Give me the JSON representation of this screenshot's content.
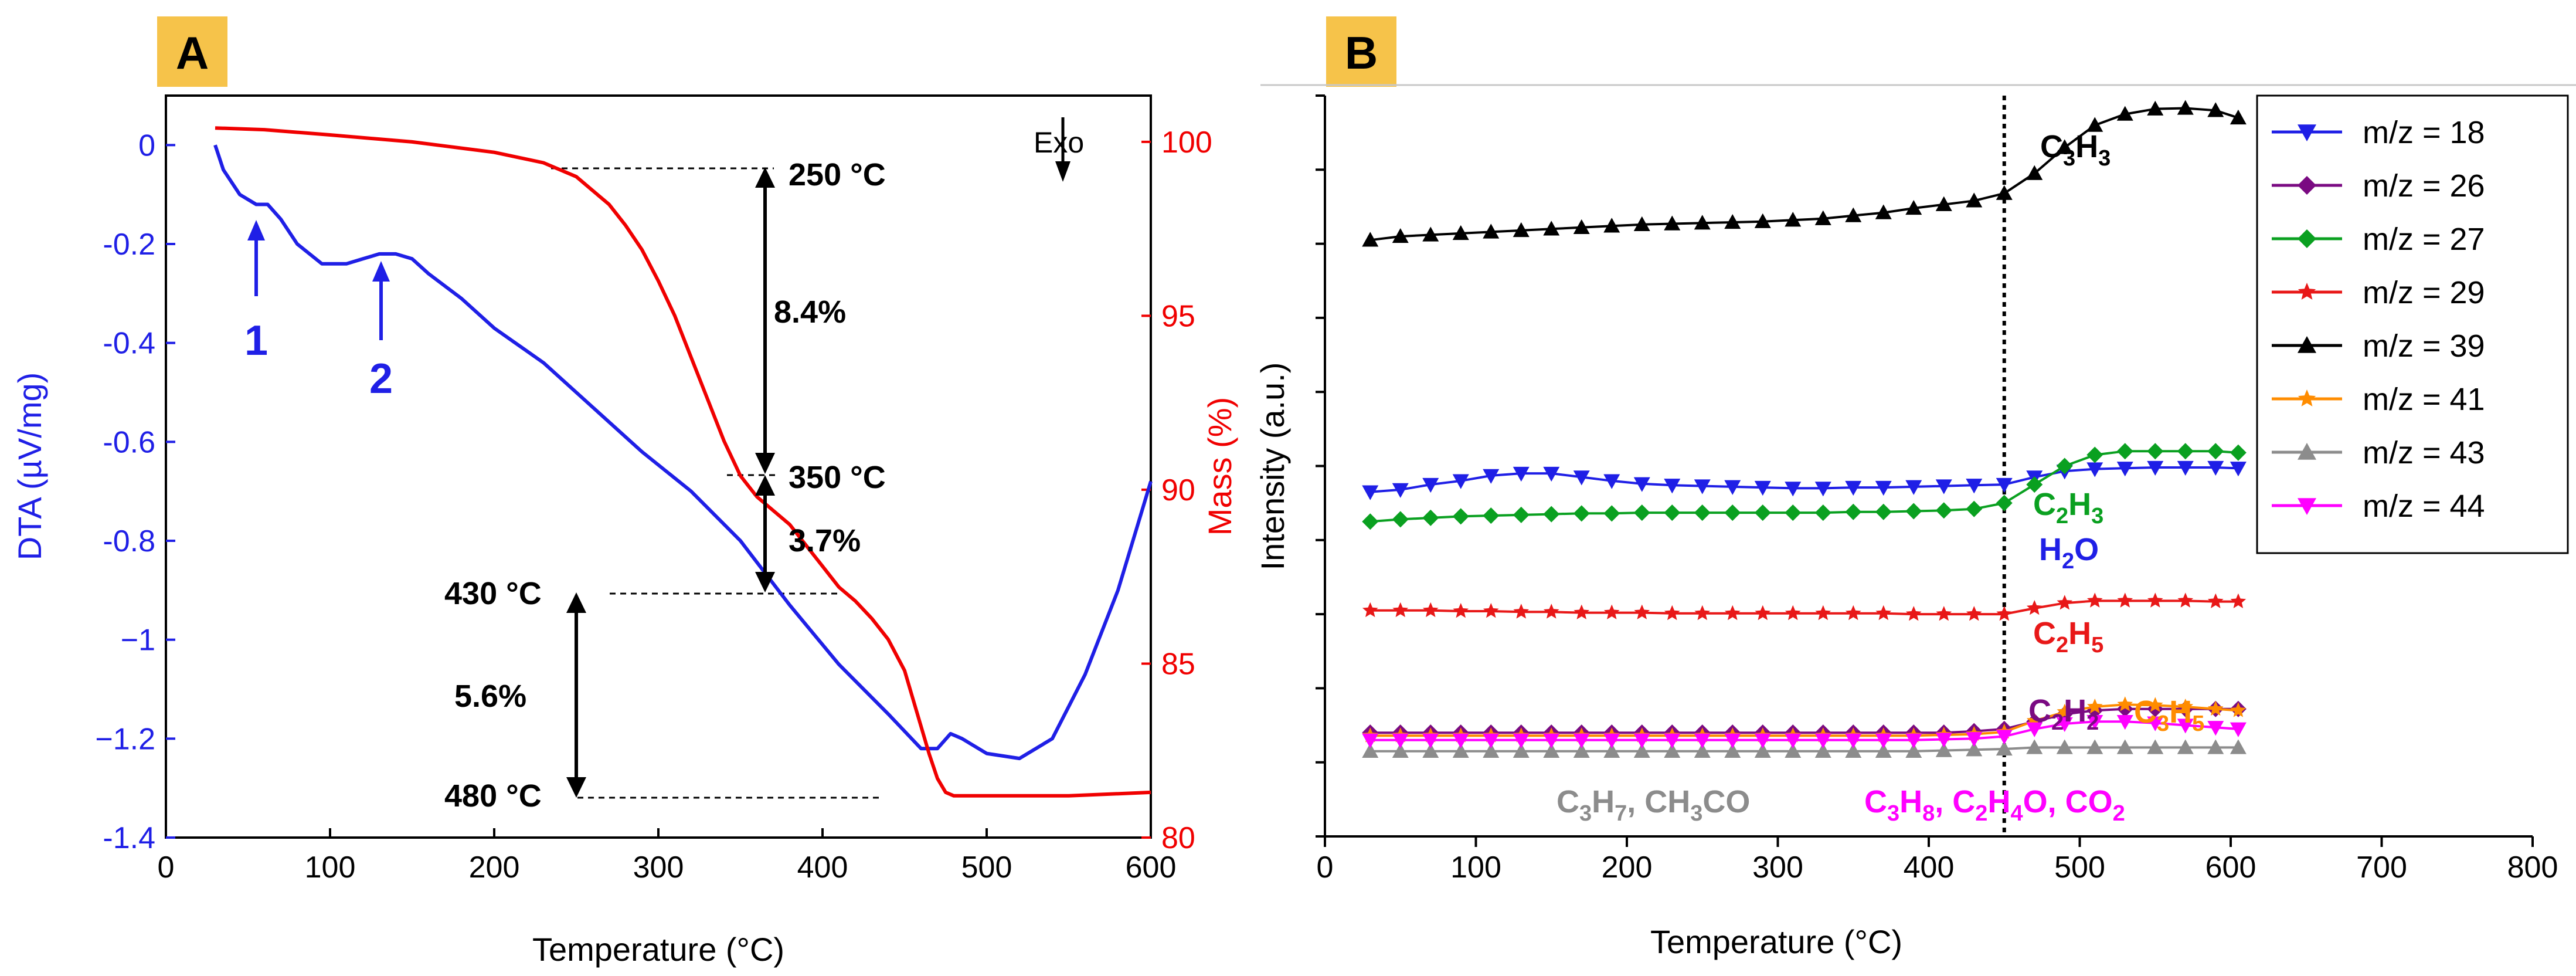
{
  "colors": {
    "blue": "#1f1fe6",
    "red": "#f00000",
    "black": "#000000",
    "green": "#0aa020",
    "purple": "#7a0a82",
    "darkred": "#e81818",
    "orange": "#ff8c00",
    "gray": "#8c8c8c",
    "magenta": "#ff00ff",
    "badge": "#f6c34a"
  },
  "panels": {
    "a_label": "A",
    "b_label": "B"
  },
  "chart_data": [
    {
      "id": "A",
      "type": "line",
      "xlabel": "Temperature (°C)",
      "ylabel_left": "DTA (µV/mg)",
      "ylabel_right": "Mass (%)",
      "xlim": [
        0,
        600
      ],
      "ylim_left": [
        -1.4,
        0.1
      ],
      "ylim_right": [
        80,
        101.33
      ],
      "xticks": [
        0,
        100,
        200,
        300,
        400,
        500,
        600
      ],
      "xtick_labels": [
        "0",
        "100",
        "200",
        "300",
        "400",
        "500",
        "600"
      ],
      "yticks_left": [
        0,
        -0.2,
        -0.4,
        -0.6,
        -0.8,
        -1,
        -1.2,
        -1.4
      ],
      "ytick_labels_left": [
        "0",
        "-0.2",
        "-0.4",
        "-0.6",
        "-0.8",
        "−1",
        "−1.2",
        "-1.4"
      ],
      "yticks_right": [
        80,
        85,
        90,
        95,
        100
      ],
      "ytick_labels_right": [
        "80",
        "85",
        "90",
        "95",
        "100"
      ],
      "series": [
        {
          "name": "DTA",
          "axis": "left",
          "color": "#1f1fe6",
          "x": [
            30,
            35,
            45,
            55,
            62,
            70,
            80,
            95,
            110,
            120,
            130,
            140,
            150,
            160,
            180,
            200,
            230,
            260,
            290,
            320,
            350,
            380,
            410,
            440,
            460,
            470,
            478,
            485,
            500,
            520,
            540,
            560,
            580,
            600
          ],
          "y": [
            0.0,
            -0.05,
            -0.1,
            -0.12,
            -0.12,
            -0.15,
            -0.2,
            -0.24,
            -0.24,
            -0.23,
            -0.22,
            -0.22,
            -0.23,
            -0.26,
            -0.31,
            -0.37,
            -0.44,
            -0.53,
            -0.62,
            -0.7,
            -0.8,
            -0.93,
            -1.05,
            -1.15,
            -1.22,
            -1.22,
            -1.19,
            -1.2,
            -1.23,
            -1.24,
            -1.2,
            -1.07,
            -0.9,
            -0.68
          ]
        },
        {
          "name": "Mass",
          "axis": "right",
          "color": "#f00000",
          "x": [
            30,
            60,
            100,
            150,
            200,
            230,
            250,
            260,
            270,
            280,
            290,
            300,
            310,
            320,
            330,
            340,
            350,
            360,
            370,
            380,
            390,
            400,
            410,
            420,
            430,
            440,
            450,
            455,
            460,
            465,
            470,
            475,
            480,
            500,
            550,
            600
          ],
          "y": [
            100.4,
            100.35,
            100.2,
            100.0,
            99.7,
            99.4,
            99.0,
            98.6,
            98.2,
            97.6,
            96.9,
            96.0,
            95.0,
            93.8,
            92.6,
            91.4,
            90.4,
            89.8,
            89.4,
            89.0,
            88.4,
            87.8,
            87.2,
            86.8,
            86.3,
            85.7,
            84.8,
            84.0,
            83.2,
            82.4,
            81.7,
            81.3,
            81.2,
            81.2,
            81.2,
            81.3
          ]
        }
      ],
      "annotations": {
        "exo": "Exo",
        "peak1": "1",
        "peak2": "2",
        "t250": "250 °C",
        "t350": "350 °C",
        "t430": "430 °C",
        "t480": "480 °C",
        "loss1": "8.4%",
        "loss2": "3.7%",
        "loss3": "5.6%"
      }
    },
    {
      "id": "B",
      "type": "line",
      "xlabel": "Temperature (°C)",
      "ylabel": "Intensity (a.u.)",
      "xlim": [
        0,
        800
      ],
      "ylim": [
        0,
        1
      ],
      "xticks": [
        0,
        100,
        200,
        300,
        400,
        500,
        600,
        700,
        800
      ],
      "xtick_labels": [
        "0",
        "100",
        "200",
        "300",
        "400",
        "500",
        "600",
        "700",
        "800"
      ],
      "vline_x": 450,
      "x": [
        30,
        50,
        70,
        90,
        110,
        130,
        150,
        170,
        190,
        210,
        230,
        250,
        270,
        290,
        310,
        330,
        350,
        370,
        390,
        410,
        430,
        450,
        470,
        490,
        510,
        530,
        550,
        570,
        590,
        605
      ],
      "series": [
        {
          "name": "m/z = 18",
          "color": "#1f1fe6",
          "marker": "tri-down",
          "values": [
            0.465,
            0.468,
            0.475,
            0.48,
            0.487,
            0.49,
            0.49,
            0.485,
            0.48,
            0.476,
            0.474,
            0.473,
            0.472,
            0.471,
            0.47,
            0.47,
            0.471,
            0.471,
            0.472,
            0.473,
            0.474,
            0.475,
            0.485,
            0.493,
            0.496,
            0.497,
            0.498,
            0.498,
            0.498,
            0.497
          ]
        },
        {
          "name": "m/z = 26",
          "color": "#7a0a82",
          "marker": "diamond",
          "values": [
            0.14,
            0.14,
            0.14,
            0.14,
            0.14,
            0.14,
            0.14,
            0.14,
            0.14,
            0.14,
            0.14,
            0.14,
            0.14,
            0.14,
            0.14,
            0.14,
            0.14,
            0.14,
            0.14,
            0.14,
            0.142,
            0.145,
            0.155,
            0.165,
            0.17,
            0.172,
            0.172,
            0.172,
            0.172,
            0.172
          ]
        },
        {
          "name": "m/z = 27",
          "color": "#0aa020",
          "marker": "diamond",
          "values": [
            0.425,
            0.428,
            0.43,
            0.432,
            0.433,
            0.434,
            0.435,
            0.436,
            0.436,
            0.437,
            0.437,
            0.437,
            0.437,
            0.437,
            0.437,
            0.437,
            0.438,
            0.438,
            0.439,
            0.44,
            0.442,
            0.45,
            0.475,
            0.5,
            0.515,
            0.52,
            0.52,
            0.52,
            0.52,
            0.518
          ]
        },
        {
          "name": "m/z = 29",
          "color": "#e81818",
          "marker": "star",
          "values": [
            0.305,
            0.305,
            0.305,
            0.304,
            0.304,
            0.303,
            0.303,
            0.302,
            0.302,
            0.302,
            0.301,
            0.301,
            0.301,
            0.301,
            0.301,
            0.301,
            0.301,
            0.301,
            0.3,
            0.3,
            0.3,
            0.3,
            0.308,
            0.315,
            0.318,
            0.318,
            0.318,
            0.318,
            0.317,
            0.317
          ]
        },
        {
          "name": "m/z = 39",
          "color": "#000000",
          "marker": "triangle",
          "values": [
            0.805,
            0.81,
            0.812,
            0.814,
            0.816,
            0.818,
            0.82,
            0.822,
            0.824,
            0.826,
            0.827,
            0.828,
            0.829,
            0.83,
            0.832,
            0.834,
            0.838,
            0.842,
            0.848,
            0.853,
            0.858,
            0.868,
            0.895,
            0.93,
            0.96,
            0.975,
            0.982,
            0.983,
            0.98,
            0.97
          ]
        },
        {
          "name": "m/z = 41",
          "color": "#ff8c00",
          "marker": "star",
          "values": [
            0.136,
            0.136,
            0.136,
            0.136,
            0.136,
            0.136,
            0.136,
            0.136,
            0.136,
            0.136,
            0.136,
            0.136,
            0.136,
            0.136,
            0.136,
            0.136,
            0.136,
            0.136,
            0.136,
            0.137,
            0.138,
            0.141,
            0.156,
            0.168,
            0.175,
            0.178,
            0.177,
            0.175,
            0.172,
            0.17
          ]
        },
        {
          "name": "m/z = 43",
          "color": "#8c8c8c",
          "marker": "triangle",
          "values": [
            0.115,
            0.115,
            0.115,
            0.115,
            0.115,
            0.115,
            0.115,
            0.115,
            0.115,
            0.115,
            0.115,
            0.115,
            0.115,
            0.115,
            0.115,
            0.115,
            0.115,
            0.115,
            0.115,
            0.116,
            0.117,
            0.118,
            0.12,
            0.12,
            0.12,
            0.12,
            0.12,
            0.12,
            0.12,
            0.12
          ]
        },
        {
          "name": "m/z = 44",
          "color": "#ff00ff",
          "marker": "tri-down",
          "values": [
            0.13,
            0.13,
            0.13,
            0.13,
            0.13,
            0.13,
            0.13,
            0.13,
            0.13,
            0.13,
            0.13,
            0.13,
            0.13,
            0.13,
            0.13,
            0.13,
            0.13,
            0.13,
            0.13,
            0.131,
            0.132,
            0.135,
            0.145,
            0.152,
            0.155,
            0.155,
            0.153,
            0.15,
            0.147,
            0.145
          ]
        }
      ],
      "annotations": {
        "c3h3": "C3H3",
        "c2h3": "C2H3",
        "h2o": "H2O",
        "c2h5": "C2H5",
        "c2h2": "C2H2",
        "c3h5": "C3H5",
        "left_group": "C3H7, CH3CO",
        "right_group": "C3H8, C2H4O, CO2"
      }
    }
  ]
}
